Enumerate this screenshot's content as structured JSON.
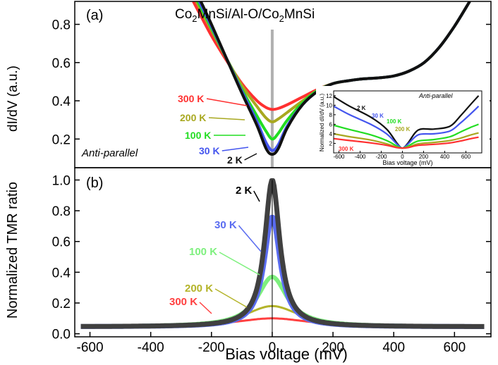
{
  "colors": {
    "t300": "#ff3030",
    "t200": "#a8a820",
    "t100": "#22dd22",
    "t30": "#4455ee",
    "t2": "#111111",
    "tmr2": "#404040",
    "tmr30": "#5a6cf0",
    "tmr100": "#7ef07e",
    "tmr200": "#b4b42a",
    "tmr300": "#ff4040",
    "zero_line": "#b0b0b0"
  },
  "chart_data": [
    {
      "panel": "a",
      "type": "line",
      "panel_label": "(a)",
      "title_parts": [
        "Co",
        "2",
        "MnSi/Al-O/Co",
        "2",
        "MnSi"
      ],
      "annotation": "Anti-parallel",
      "xlim": [
        -650,
        720
      ],
      "ylim": [
        0.05,
        0.92
      ],
      "yticks": [
        0.2,
        0.4,
        0.6,
        0.8
      ],
      "ytick_labels": [
        "0.2",
        "0.4",
        "0.6",
        "0.8"
      ],
      "ylabel": "dI/dV (a.u.)",
      "series": [
        {
          "name": "300 K",
          "label": "300 K",
          "color_key": "t300",
          "x": [
            -260,
            -200,
            -150,
            -100,
            -50,
            -20,
            0,
            20,
            50,
            100,
            150,
            200,
            250,
            300,
            350,
            400,
            450,
            500,
            550,
            600,
            650
          ],
          "y": [
            0.92,
            0.74,
            0.61,
            0.49,
            0.4,
            0.365,
            0.355,
            0.36,
            0.38,
            0.42,
            0.46,
            0.49,
            0.505,
            0.515,
            0.52,
            0.53,
            0.555,
            0.6,
            0.68,
            0.79,
            0.92
          ]
        },
        {
          "name": "200 K",
          "label": "200 K",
          "color_key": "t200",
          "x": [
            -250,
            -200,
            -150,
            -100,
            -50,
            -20,
            0,
            20,
            50,
            100,
            150,
            200,
            250,
            300,
            350,
            400,
            450,
            500,
            550,
            600,
            650
          ],
          "y": [
            0.92,
            0.77,
            0.62,
            0.48,
            0.37,
            0.31,
            0.29,
            0.305,
            0.34,
            0.4,
            0.455,
            0.49,
            0.505,
            0.515,
            0.52,
            0.53,
            0.555,
            0.6,
            0.68,
            0.79,
            0.92
          ]
        },
        {
          "name": "100 K",
          "label": "100 K",
          "color_key": "t100",
          "x": [
            -245,
            -200,
            -150,
            -100,
            -50,
            -20,
            0,
            20,
            50,
            100,
            150,
            200,
            250,
            300,
            350,
            400,
            450,
            500,
            550,
            600,
            650
          ],
          "y": [
            0.92,
            0.78,
            0.62,
            0.46,
            0.32,
            0.24,
            0.2,
            0.23,
            0.3,
            0.39,
            0.455,
            0.49,
            0.505,
            0.515,
            0.52,
            0.53,
            0.555,
            0.6,
            0.68,
            0.79,
            0.92
          ]
        },
        {
          "name": "30 K",
          "label": "30 K",
          "color_key": "t30",
          "x": [
            -240,
            -200,
            -150,
            -100,
            -50,
            -20,
            0,
            20,
            50,
            100,
            150,
            200,
            250,
            300,
            350,
            400,
            450,
            500,
            550,
            600,
            650
          ],
          "y": [
            0.92,
            0.79,
            0.62,
            0.45,
            0.29,
            0.18,
            0.14,
            0.17,
            0.27,
            0.38,
            0.45,
            0.49,
            0.505,
            0.515,
            0.52,
            0.53,
            0.555,
            0.6,
            0.68,
            0.79,
            0.92
          ]
        },
        {
          "name": "2 K",
          "label": "2 K",
          "color_key": "t2",
          "x": [
            -235,
            -200,
            -150,
            -100,
            -50,
            -20,
            0,
            20,
            50,
            100,
            150,
            200,
            250,
            300,
            350,
            400,
            450,
            500,
            550,
            600,
            650
          ],
          "y": [
            0.92,
            0.8,
            0.62,
            0.44,
            0.27,
            0.15,
            0.12,
            0.15,
            0.26,
            0.38,
            0.45,
            0.49,
            0.505,
            0.515,
            0.52,
            0.53,
            0.555,
            0.6,
            0.68,
            0.79,
            0.92
          ]
        }
      ],
      "inset": {
        "type": "line",
        "annotation": "Anti-parallel",
        "xlabel": "Bias voltage (mV)",
        "ylabel": "Normalized dI/dV (a.u.)",
        "xlim": [
          -650,
          750
        ],
        "ylim": [
          0,
          13
        ],
        "xticks": [
          -600,
          -400,
          -200,
          0,
          200,
          400,
          600
        ],
        "xtick_labels": [
          "-600",
          "-400",
          "-200",
          "0",
          "200",
          "400",
          "600"
        ],
        "yticks": [
          2,
          4,
          6,
          8,
          10,
          12
        ],
        "ytick_labels": [
          "2",
          "4",
          "6",
          "8",
          "10",
          "12"
        ],
        "series": [
          {
            "name": "2 K",
            "label": "2 K",
            "color_key": "t2",
            "x": [
              -650,
              -500,
              -300,
              -150,
              -50,
              0,
              50,
              150,
              300,
              450,
              550,
              650,
              720
            ],
            "y": [
              11.8,
              9.8,
              7.5,
              5.0,
              2.0,
              1.0,
              2.0,
              4.8,
              5.0,
              5.6,
              7.8,
              10.3,
              12.0
            ]
          },
          {
            "name": "30 K",
            "label": "30 K",
            "color_key": "t30",
            "x": [
              -650,
              -500,
              -300,
              -150,
              -50,
              0,
              50,
              150,
              300,
              450,
              550,
              650,
              720
            ],
            "y": [
              9.8,
              8.0,
              6.0,
              4.0,
              1.8,
              1.0,
              1.8,
              3.8,
              4.0,
              4.6,
              6.3,
              8.3,
              9.8
            ]
          },
          {
            "name": "100 K",
            "label": "100 K",
            "color_key": "t100",
            "x": [
              -650,
              -500,
              -300,
              -150,
              -50,
              0,
              50,
              150,
              300,
              450,
              550,
              650,
              720
            ],
            "y": [
              5.8,
              4.9,
              3.8,
              2.6,
              1.4,
              1.0,
              1.4,
              2.5,
              2.8,
              3.4,
              4.4,
              5.4,
              6.0
            ]
          },
          {
            "name": "200 K",
            "label": "200 K",
            "color_key": "t200",
            "x": [
              -650,
              -500,
              -300,
              -150,
              -50,
              0,
              50,
              150,
              300,
              450,
              550,
              650,
              720
            ],
            "y": [
              4.0,
              3.4,
              2.7,
              1.9,
              1.2,
              1.0,
              1.2,
              1.9,
              2.2,
              2.6,
              3.1,
              3.8,
              4.2
            ]
          },
          {
            "name": "300 K",
            "label": "300 K",
            "color_key": "t300",
            "x": [
              -650,
              -500,
              -300,
              -150,
              -50,
              0,
              50,
              150,
              300,
              450,
              550,
              650,
              720
            ],
            "y": [
              3.0,
              2.6,
              2.1,
              1.6,
              1.1,
              1.0,
              1.1,
              1.6,
              1.8,
              2.1,
              2.5,
              3.0,
              3.3
            ]
          }
        ]
      }
    },
    {
      "panel": "b",
      "type": "line",
      "panel_label": "(b)",
      "xlim": [
        -650,
        720
      ],
      "ylim": [
        -0.02,
        1.08
      ],
      "xticks": [
        -600,
        -400,
        -200,
        0,
        200,
        400,
        600
      ],
      "xtick_labels": [
        "-600",
        "-400",
        "-200",
        "0",
        "200",
        "400",
        "600"
      ],
      "yticks": [
        0.0,
        0.2,
        0.4,
        0.6,
        0.8,
        1.0
      ],
      "ytick_labels": [
        "0.0",
        "0.2",
        "0.4",
        "0.6",
        "0.8",
        "1.0"
      ],
      "xlabel": "Bias voltage (mV)",
      "ylabel": "Normalized TMR ratio",
      "series": [
        {
          "name": "300 K",
          "label": "300 K",
          "color_key": "tmr300",
          "lorentz": {
            "peak": 0.1,
            "hw": 150,
            "base": 0.045,
            "slope": 0.0
          }
        },
        {
          "name": "200 K",
          "label": "200 K",
          "color_key": "tmr200",
          "lorentz": {
            "peak": 0.18,
            "hw": 110,
            "base": 0.045,
            "slope": 0.0
          }
        },
        {
          "name": "100 K",
          "label": "100 K",
          "color_key": "tmr100",
          "lorentz": {
            "peak": 0.37,
            "hw": 60,
            "base": 0.045,
            "slope": 0.0
          }
        },
        {
          "name": "30 K",
          "label": "30 K",
          "color_key": "tmr30",
          "lorentz": {
            "peak": 0.76,
            "hw": 32,
            "base": 0.045,
            "slope": 0.0
          }
        },
        {
          "name": "2 K",
          "label": "2 K",
          "color_key": "tmr2",
          "lorentz": {
            "peak": 1.0,
            "hw": 30,
            "base": 0.045,
            "slope": 0.0
          }
        }
      ]
    }
  ]
}
